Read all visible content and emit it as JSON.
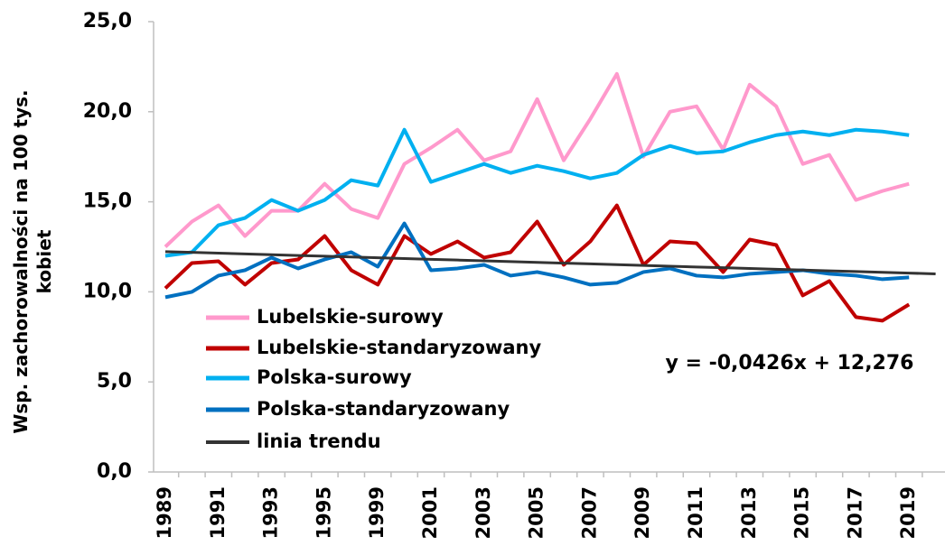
{
  "chart_data": {
    "type": "line",
    "y_label": "Wsp. zachorowalności na 100 tys. kobiet",
    "annotation": "y = -0,0426x + 12,276",
    "categories": [
      1989,
      null,
      1991,
      null,
      1993,
      null,
      1995,
      null,
      1999,
      null,
      2001,
      null,
      2003,
      null,
      2005,
      null,
      2007,
      null,
      2009,
      null,
      2011,
      null,
      2013,
      null,
      2015,
      null,
      2017,
      null,
      2019,
      null
    ],
    "ylim": [
      0,
      25
    ],
    "yticks": [
      {
        "value": 0,
        "label": "0,0"
      },
      {
        "value": 5,
        "label": "5,0"
      },
      {
        "value": 10,
        "label": "10,0"
      },
      {
        "value": 15,
        "label": "15,0"
      },
      {
        "value": 20,
        "label": "20,0"
      },
      {
        "value": 25,
        "label": "25,0"
      }
    ],
    "grid": false,
    "legend": "lower left",
    "series": [
      {
        "name": "Lubelskie-surowy",
        "color": "#ff99cc",
        "width": 4,
        "values": [
          12.5,
          13.9,
          14.8,
          13.1,
          14.5,
          14.5,
          16.0,
          14.6,
          14.1,
          17.1,
          18.0,
          19.0,
          17.3,
          17.8,
          20.7,
          17.3,
          19.6,
          22.1,
          17.5,
          20.0,
          20.3,
          17.9,
          21.5,
          20.3,
          17.1,
          17.6,
          15.1,
          15.6,
          16.0,
          null
        ]
      },
      {
        "name": "Lubelskie-standaryzowany",
        "color": "#c00000",
        "width": 4,
        "values": [
          10.2,
          11.6,
          11.7,
          10.4,
          11.6,
          11.8,
          13.1,
          11.2,
          10.4,
          13.1,
          12.1,
          12.8,
          11.9,
          12.2,
          13.9,
          11.5,
          12.8,
          14.8,
          11.5,
          12.8,
          12.7,
          11.1,
          12.9,
          12.6,
          9.8,
          10.6,
          8.6,
          8.4,
          9.3,
          null
        ]
      },
      {
        "name": "Polska-surowy",
        "color": "#00b0f0",
        "width": 4,
        "values": [
          12.0,
          12.2,
          13.7,
          14.1,
          15.1,
          14.5,
          15.1,
          16.2,
          15.9,
          19.0,
          16.1,
          16.6,
          17.1,
          16.6,
          17.0,
          16.7,
          16.3,
          16.6,
          17.6,
          18.1,
          17.7,
          17.8,
          18.3,
          18.7,
          18.9,
          18.7,
          19.0,
          18.9,
          18.7,
          null
        ]
      },
      {
        "name": "Polska-standaryzowany",
        "color": "#0070c0",
        "width": 4,
        "values": [
          9.7,
          10.0,
          10.9,
          11.2,
          11.9,
          11.3,
          11.8,
          12.2,
          11.4,
          13.8,
          11.2,
          11.3,
          11.5,
          10.9,
          11.1,
          10.8,
          10.4,
          10.5,
          11.1,
          11.3,
          10.9,
          10.8,
          11.0,
          11.1,
          11.2,
          11.0,
          10.9,
          10.7,
          10.8,
          null
        ]
      },
      {
        "name": "linia trendu",
        "color": "#333333",
        "width": 3,
        "values": [
          12.233,
          12.191,
          12.148,
          12.106,
          12.063,
          12.02,
          11.978,
          11.935,
          11.893,
          11.85,
          11.807,
          11.765,
          11.722,
          11.68,
          11.637,
          11.594,
          11.552,
          11.509,
          11.467,
          11.424,
          11.381,
          11.339,
          11.296,
          11.254,
          11.211,
          11.168,
          11.126,
          11.083,
          11.041,
          10.998
        ]
      }
    ]
  }
}
